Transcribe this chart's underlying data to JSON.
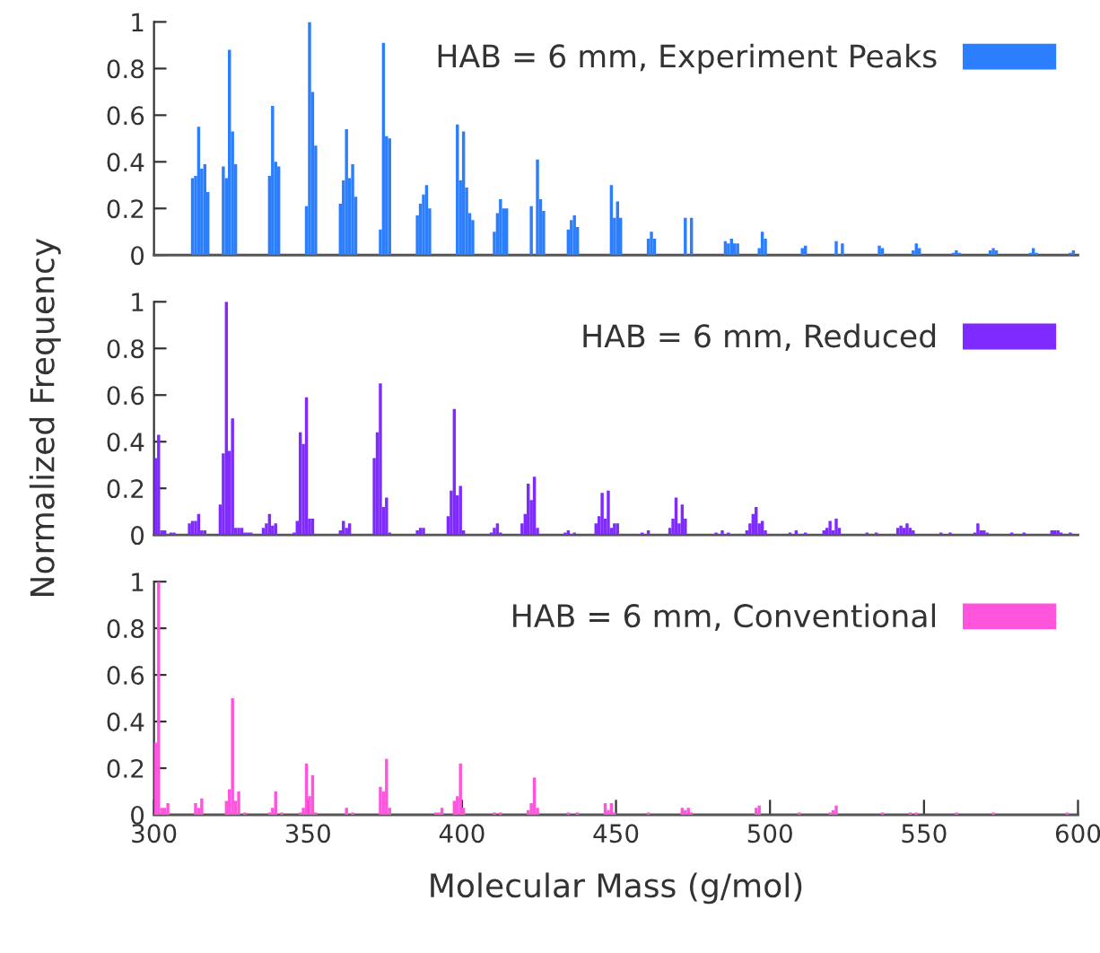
{
  "chart_data": [
    {
      "type": "bar",
      "xlim": [
        300,
        600
      ],
      "ylim": [
        0,
        1
      ],
      "xticks": [
        300,
        350,
        400,
        450,
        500,
        550,
        600
      ],
      "yticks": [
        0,
        0.2,
        0.4,
        0.6,
        0.8,
        1
      ],
      "tick_labels": "y",
      "legend": "top right",
      "grid": false,
      "series": [
        {
          "name": "HAB = 6 mm, Experiment Peaks",
          "color": "#2b7fff",
          "x": [
            312,
            313,
            314,
            315,
            316,
            317,
            322,
            323,
            324,
            325,
            326,
            337,
            338,
            339,
            340,
            349,
            350,
            351,
            352,
            360,
            361,
            362,
            363,
            364,
            365,
            373,
            374,
            375,
            376,
            385,
            386,
            387,
            388,
            389,
            398,
            399,
            400,
            401,
            402,
            403,
            410,
            411,
            412,
            413,
            414,
            422,
            424,
            425,
            426,
            434,
            435,
            436,
            437,
            448,
            449,
            450,
            451,
            460,
            461,
            462,
            472,
            474,
            485,
            486,
            487,
            488,
            489,
            496,
            497,
            498,
            510,
            511,
            521,
            523,
            535,
            536,
            546,
            547,
            548,
            559,
            560,
            561,
            571,
            572,
            573,
            584,
            585,
            586,
            597,
            598
          ],
          "values": [
            0.33,
            0.34,
            0.55,
            0.37,
            0.39,
            0.27,
            0.38,
            0.33,
            0.88,
            0.53,
            0.39,
            0.34,
            0.64,
            0.4,
            0.38,
            0.21,
            1.0,
            0.7,
            0.47,
            0.22,
            0.32,
            0.54,
            0.33,
            0.39,
            0.25,
            0.11,
            0.91,
            0.51,
            0.5,
            0.17,
            0.22,
            0.26,
            0.3,
            0.2,
            0.56,
            0.32,
            0.53,
            0.29,
            0.18,
            0.15,
            0.1,
            0.18,
            0.24,
            0.2,
            0.2,
            0.21,
            0.41,
            0.24,
            0.19,
            0.11,
            0.15,
            0.17,
            0.12,
            0.3,
            0.16,
            0.23,
            0.16,
            0.07,
            0.1,
            0.07,
            0.16,
            0.16,
            0.06,
            0.05,
            0.07,
            0.05,
            0.05,
            0.03,
            0.1,
            0.07,
            0.03,
            0.04,
            0.06,
            0.05,
            0.04,
            0.03,
            0.02,
            0.05,
            0.03,
            0.01,
            0.02,
            0.01,
            0.02,
            0.03,
            0.02,
            0.01,
            0.03,
            0.01,
            0.01,
            0.02
          ]
        }
      ]
    },
    {
      "type": "bar",
      "xlim": [
        300,
        600
      ],
      "ylim": [
        0,
        1
      ],
      "xticks": [
        300,
        350,
        400,
        450,
        500,
        550,
        600
      ],
      "yticks": [
        0,
        0.2,
        0.4,
        0.6,
        0.8,
        1
      ],
      "tick_labels": "y",
      "legend": "top right",
      "grid": false,
      "ylabel": "Normalized Frequency",
      "series": [
        {
          "name": "HAB = 6 mm, Reduced",
          "color": "#7f2aff",
          "x": [
            300,
            301,
            302,
            303,
            305,
            306,
            311,
            312,
            313,
            314,
            315,
            316,
            321,
            322,
            323,
            324,
            325,
            326,
            327,
            328,
            329,
            330,
            331,
            335,
            336,
            337,
            338,
            339,
            345,
            346,
            347,
            348,
            349,
            350,
            351,
            360,
            361,
            362,
            363,
            371,
            372,
            373,
            374,
            375,
            376,
            385,
            386,
            387,
            395,
            396,
            397,
            398,
            399,
            400,
            409,
            410,
            411,
            412,
            419,
            420,
            421,
            422,
            423,
            424,
            433,
            434,
            436,
            443,
            444,
            445,
            446,
            447,
            448,
            449,
            450,
            458,
            460,
            467,
            468,
            469,
            470,
            471,
            472,
            482,
            484,
            486,
            492,
            493,
            494,
            495,
            496,
            497,
            498,
            506,
            508,
            511,
            517,
            518,
            519,
            520,
            521,
            522,
            531,
            534,
            541,
            542,
            543,
            544,
            545,
            546,
            555,
            558,
            566,
            567,
            568,
            569,
            570,
            578,
            582,
            591,
            592,
            593,
            594,
            597
          ],
          "values": [
            0.33,
            0.43,
            0.02,
            0.02,
            0.01,
            0.01,
            0.05,
            0.06,
            0.06,
            0.09,
            0.02,
            0.02,
            0.13,
            0.35,
            1.0,
            0.36,
            0.5,
            0.03,
            0.03,
            0.03,
            0.01,
            0.01,
            0.01,
            0.03,
            0.05,
            0.09,
            0.04,
            0.05,
            0.01,
            0.06,
            0.44,
            0.39,
            0.59,
            0.07,
            0.07,
            0.02,
            0.06,
            0.03,
            0.05,
            0.33,
            0.44,
            0.65,
            0.12,
            0.16,
            0.01,
            0.02,
            0.03,
            0.03,
            0.08,
            0.19,
            0.54,
            0.17,
            0.21,
            0.02,
            0.01,
            0.03,
            0.05,
            0.01,
            0.05,
            0.09,
            0.22,
            0.15,
            0.25,
            0.03,
            0.01,
            0.02,
            0.01,
            0.05,
            0.08,
            0.18,
            0.07,
            0.19,
            0.03,
            0.05,
            0.05,
            0.01,
            0.02,
            0.03,
            0.07,
            0.16,
            0.05,
            0.13,
            0.07,
            0.01,
            0.02,
            0.01,
            0.02,
            0.05,
            0.09,
            0.12,
            0.05,
            0.06,
            0.02,
            0.01,
            0.02,
            0.01,
            0.02,
            0.03,
            0.06,
            0.02,
            0.07,
            0.03,
            0.01,
            0.01,
            0.03,
            0.04,
            0.03,
            0.05,
            0.03,
            0.02,
            0.01,
            0.01,
            0.01,
            0.05,
            0.02,
            0.02,
            0.01,
            0.01,
            0.01,
            0.02,
            0.02,
            0.02,
            0.01,
            0.01
          ]
        }
      ]
    },
    {
      "type": "bar",
      "xlim": [
        300,
        600
      ],
      "ylim": [
        0,
        1
      ],
      "xticks": [
        300,
        350,
        400,
        450,
        500,
        550,
        600
      ],
      "yticks": [
        0,
        0.2,
        0.4,
        0.6,
        0.8,
        1
      ],
      "legend": "top right",
      "grid": false,
      "xlabel": "Molecular Mass (g/mol)",
      "series": [
        {
          "name": "HAB = 6 mm, Conventional",
          "color": "#ff55dd",
          "x": [
            300,
            301,
            302,
            303,
            304,
            313,
            314,
            315,
            323,
            324,
            325,
            326,
            327,
            329,
            337,
            338,
            339,
            341,
            347,
            348,
            349,
            350,
            351,
            352,
            362,
            364,
            373,
            374,
            375,
            376,
            391,
            392,
            393,
            397,
            398,
            399,
            400,
            410,
            412,
            421,
            422,
            423,
            424,
            434,
            437,
            446,
            447,
            448,
            449,
            460,
            471,
            472,
            473,
            474,
            495,
            496,
            509,
            519,
            520,
            521,
            536,
            545,
            547,
            560,
            572,
            596
          ],
          "values": [
            0.31,
            1.0,
            0.03,
            0.03,
            0.05,
            0.05,
            0.03,
            0.07,
            0.06,
            0.11,
            0.5,
            0.06,
            0.1,
            0.01,
            0.01,
            0.03,
            0.1,
            0.01,
            0.01,
            0.03,
            0.22,
            0.08,
            0.17,
            0.01,
            0.03,
            0.01,
            0.12,
            0.1,
            0.24,
            0.03,
            0.01,
            0.01,
            0.03,
            0.06,
            0.08,
            0.22,
            0.03,
            0.01,
            0.01,
            0.02,
            0.05,
            0.16,
            0.03,
            0.01,
            0.01,
            0.05,
            0.02,
            0.05,
            0.01,
            0.01,
            0.03,
            0.02,
            0.03,
            0.01,
            0.03,
            0.04,
            0.01,
            0.01,
            0.02,
            0.04,
            0.01,
            0.01,
            0.01,
            0.01,
            0.01,
            0.01
          ]
        }
      ]
    }
  ]
}
